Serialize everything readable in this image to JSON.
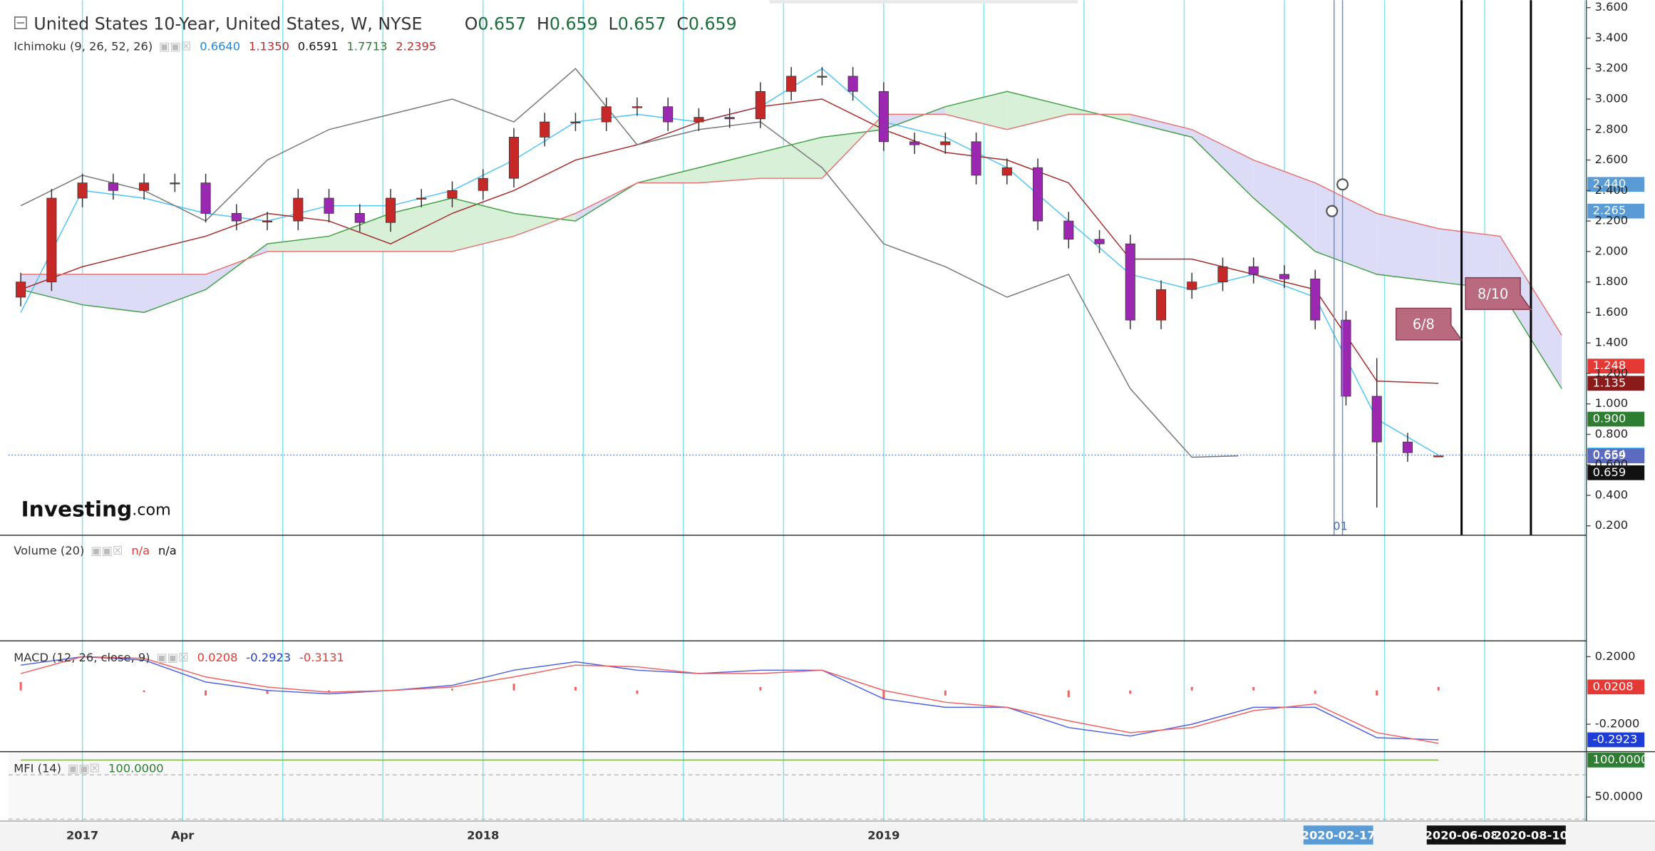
{
  "header": {
    "title": "United States 10-Year, United States, W, NYSE",
    "logo": [
      "Investing",
      ".com"
    ]
  },
  "chart_data": [
    {
      "type": "candlestick",
      "title": "Ichimoku (9, 26, 52, 26)",
      "ohlc": [
        {
          "label": "O",
          "value": "0.657"
        },
        {
          "label": "H",
          "value": "0.659"
        },
        {
          "label": "L",
          "value": "0.657"
        },
        {
          "label": "C",
          "value": "0.659"
        }
      ],
      "legend_values": [
        {
          "text": "0.6640",
          "color": "#1e88e5"
        },
        {
          "text": "1.1350",
          "color": "#c62828"
        },
        {
          "text": "0.6591",
          "color": "#111111"
        },
        {
          "text": "1.7713",
          "color": "#2e7d32"
        },
        {
          "text": "2.2395",
          "color": "#c62828"
        }
      ],
      "x": [
        -8,
        -4,
        0,
        4,
        8,
        12,
        16,
        20,
        24,
        28,
        32,
        36,
        40,
        44,
        48,
        52,
        56,
        60,
        64,
        68,
        72,
        76,
        80,
        84,
        88,
        92,
        96,
        100,
        104,
        108,
        112,
        116,
        120,
        124,
        128,
        132,
        136,
        140,
        144,
        148,
        152,
        156,
        160,
        164,
        168,
        172,
        176
      ],
      "open": [
        1.7,
        1.8,
        2.35,
        2.45,
        2.4,
        2.45,
        2.45,
        2.25,
        2.2,
        2.2,
        2.35,
        2.25,
        2.19,
        2.35,
        2.35,
        2.4,
        2.48,
        2.75,
        2.85,
        2.85,
        2.95,
        2.95,
        2.85,
        2.88,
        2.87,
        3.05,
        3.15,
        3.15,
        3.05,
        2.72,
        2.7,
        2.72,
        2.5,
        2.55,
        2.2,
        2.08,
        2.05,
        1.55,
        1.75,
        1.8,
        1.9,
        1.85,
        1.82,
        1.55,
        1.05,
        0.75,
        0.657
      ],
      "high": [
        1.86,
        2.41,
        2.51,
        2.51,
        2.51,
        2.51,
        2.51,
        2.31,
        2.26,
        2.41,
        2.41,
        2.31,
        2.41,
        2.41,
        2.46,
        2.54,
        2.81,
        2.91,
        2.91,
        3.01,
        3.01,
        3.01,
        2.94,
        2.94,
        3.11,
        3.21,
        3.21,
        3.21,
        3.11,
        2.78,
        2.78,
        2.78,
        2.61,
        2.61,
        2.26,
        2.14,
        2.11,
        1.81,
        1.86,
        1.96,
        1.96,
        1.91,
        1.88,
        1.61,
        1.3,
        0.81,
        0.659
      ],
      "low": [
        1.64,
        1.74,
        2.29,
        2.34,
        2.34,
        2.39,
        2.19,
        2.14,
        2.14,
        2.14,
        2.19,
        2.13,
        2.13,
        2.29,
        2.29,
        2.34,
        2.42,
        2.69,
        2.79,
        2.79,
        2.89,
        2.79,
        2.79,
        2.81,
        2.81,
        2.99,
        3.09,
        2.99,
        2.66,
        2.64,
        2.64,
        2.44,
        2.44,
        2.14,
        2.02,
        1.99,
        1.49,
        1.49,
        1.69,
        1.74,
        1.79,
        1.76,
        1.49,
        0.99,
        0.32,
        0.62,
        0.657
      ],
      "close": [
        1.8,
        2.35,
        2.45,
        2.4,
        2.45,
        2.45,
        2.25,
        2.2,
        2.2,
        2.35,
        2.25,
        2.19,
        2.35,
        2.35,
        2.4,
        2.48,
        2.75,
        2.85,
        2.85,
        2.95,
        2.95,
        2.85,
        2.88,
        2.87,
        3.05,
        3.15,
        3.15,
        3.05,
        2.72,
        2.7,
        2.72,
        2.5,
        2.55,
        2.2,
        2.08,
        2.05,
        1.55,
        1.75,
        1.8,
        1.9,
        1.85,
        1.82,
        1.55,
        1.05,
        0.75,
        0.68,
        0.659
      ],
      "up_color": "#c62828",
      "down_color": "#9c27b0",
      "series": [
        {
          "color": "#4fc3f7",
          "x": [
            -8,
            0,
            8,
            16,
            24,
            32,
            40,
            48,
            56,
            64,
            72,
            80,
            88,
            96,
            104,
            112,
            120,
            128,
            136,
            144,
            152,
            160,
            168,
            176
          ],
          "values": [
            1.6,
            2.4,
            2.35,
            2.25,
            2.2,
            2.3,
            2.3,
            2.4,
            2.6,
            2.85,
            2.9,
            2.85,
            2.95,
            3.2,
            2.85,
            2.75,
            2.55,
            2.2,
            1.85,
            1.75,
            1.85,
            1.7,
            0.9,
            0.664
          ]
        },
        {
          "color": "#a52a2a",
          "x": [
            -8,
            0,
            8,
            16,
            24,
            32,
            40,
            48,
            56,
            64,
            72,
            80,
            88,
            96,
            104,
            112,
            120,
            128,
            136,
            144,
            152,
            160,
            168,
            176
          ],
          "values": [
            1.75,
            1.9,
            2.0,
            2.1,
            2.25,
            2.2,
            2.05,
            2.25,
            2.4,
            2.6,
            2.7,
            2.85,
            2.95,
            3.0,
            2.8,
            2.65,
            2.6,
            2.45,
            1.95,
            1.95,
            1.85,
            1.75,
            1.15,
            1.135
          ]
        },
        {
          "color": "#777777",
          "x": [
            -8,
            0,
            8,
            16,
            24,
            32,
            40,
            48,
            56,
            64,
            72,
            80,
            88,
            96,
            104,
            112,
            120,
            128,
            136,
            144,
            150
          ],
          "values": [
            2.3,
            2.5,
            2.4,
            2.2,
            2.6,
            2.8,
            2.9,
            3.0,
            2.85,
            3.2,
            2.7,
            2.8,
            2.85,
            2.55,
            2.05,
            1.9,
            1.7,
            1.85,
            1.1,
            0.65,
            0.659
          ]
        },
        {
          "color": "#43a047",
          "x": [
            -8,
            0,
            8,
            16,
            24,
            32,
            40,
            48,
            56,
            64,
            72,
            80,
            88,
            96,
            104,
            112,
            120,
            128,
            136,
            144,
            152,
            160,
            168,
            176,
            184,
            192
          ],
          "values": [
            1.75,
            1.65,
            1.6,
            1.75,
            2.05,
            2.1,
            2.25,
            2.35,
            2.25,
            2.2,
            2.45,
            2.55,
            2.65,
            2.75,
            2.8,
            2.95,
            3.05,
            2.95,
            2.85,
            2.75,
            2.35,
            2.0,
            1.85,
            1.8,
            1.75,
            1.1
          ]
        },
        {
          "color": "#e57373",
          "x": [
            -8,
            0,
            8,
            16,
            24,
            32,
            40,
            48,
            56,
            64,
            72,
            80,
            88,
            96,
            104,
            112,
            120,
            128,
            136,
            144,
            152,
            160,
            168,
            176,
            184,
            192
          ],
          "values": [
            1.85,
            1.85,
            1.85,
            1.85,
            2.0,
            2.0,
            2.0,
            2.0,
            2.1,
            2.25,
            2.45,
            2.45,
            2.48,
            2.48,
            2.9,
            2.9,
            2.8,
            2.9,
            2.9,
            2.8,
            2.6,
            2.45,
            2.25,
            2.15,
            2.1,
            1.45
          ]
        }
      ],
      "cloud_colors": [
        "#d8efd8",
        "#dcdcf7"
      ],
      "xlim": [
        -9.6,
        195.2
      ],
      "ylim": [
        0.138,
        3.649
      ],
      "yticks": [
        {
          "value": 3.6,
          "label": "3.600"
        },
        {
          "value": 3.4,
          "label": "3.400"
        },
        {
          "value": 3.2,
          "label": "3.200"
        },
        {
          "value": 3.0,
          "label": "3.000"
        },
        {
          "value": 2.8,
          "label": "2.800"
        },
        {
          "value": 2.6,
          "label": "2.600"
        },
        {
          "value": 2.4,
          "label": "2.400"
        },
        {
          "value": 2.2,
          "label": "2.200"
        },
        {
          "value": 2.0,
          "label": "2.000"
        },
        {
          "value": 1.8,
          "label": "1.800"
        },
        {
          "value": 1.6,
          "label": "1.600"
        },
        {
          "value": 1.4,
          "label": "1.400"
        },
        {
          "value": 1.2,
          "label": "1.200"
        },
        {
          "value": 1.0,
          "label": "1.000"
        },
        {
          "value": 0.8,
          "label": "0.800"
        },
        {
          "value": 0.6,
          "label": "0.600"
        },
        {
          "value": 0.4,
          "label": "0.400"
        },
        {
          "value": 0.2,
          "label": "0.200"
        }
      ],
      "xticks": [
        {
          "value": 0,
          "label": "2017"
        },
        {
          "value": 13,
          "label": "Apr"
        },
        {
          "value": 52,
          "label": "2018"
        },
        {
          "value": 104,
          "label": "2019"
        },
        {
          "value": 163,
          "label": "2020-02-17",
          "background": "#5b9bd5"
        },
        {
          "value": 179,
          "label": "2020-06-08",
          "background": "#111111"
        },
        {
          "value": 188,
          "label": "2020-08-10",
          "background": "#111111"
        }
      ],
      "badges": [
        {
          "value": 2.44,
          "label": "2.440",
          "color": "#5b9bd5"
        },
        {
          "value": 2.265,
          "label": "2.265",
          "color": "#5b9bd5"
        },
        {
          "value": 1.248,
          "label": "1.248",
          "color": "#e53935"
        },
        {
          "value": 1.135,
          "label": "1.135",
          "color": "#8b1a1a"
        },
        {
          "value": 0.9,
          "label": "0.900",
          "color": "#2e7d32"
        },
        {
          "value": 0.664,
          "label": "0.664",
          "color": "#29b6f6"
        },
        {
          "value": 0.659,
          "label": "0.659",
          "color": "#5c6bc0"
        },
        {
          "value": 0.659,
          "label": "0.659",
          "color": "#111111"
        }
      ],
      "price_line": 0.664,
      "markers": [
        {
          "x": 179,
          "value": 1.42,
          "label": "6/8"
        },
        {
          "x": 188,
          "value": 1.62,
          "label": "8/10"
        }
      ],
      "cursor": {
        "x": 163,
        "label": "01",
        "points": [
          2.44,
          2.265
        ]
      }
    },
    {
      "type": "volume",
      "title": "Volume (20)",
      "legend_values": [
        {
          "text": "n/a",
          "color": "#e53935"
        },
        {
          "text": "n/a",
          "color": "#111111"
        }
      ]
    },
    {
      "type": "line",
      "title": "MACD (12, 26, close, 9)",
      "legend_values": [
        {
          "text": "0.0208",
          "color": "#e53935"
        },
        {
          "text": "-0.2923",
          "color": "#1e3cd6"
        },
        {
          "text": "-0.3131",
          "color": "#e53935"
        }
      ],
      "xlim": [
        -9.6,
        195.2
      ],
      "ylim": [
        -0.3625,
        0.294
      ],
      "yticks": [
        {
          "value": 0.2,
          "label": "0.2000"
        },
        {
          "value": -0.2,
          "label": "-0.2000"
        }
      ],
      "series": [
        {
          "color": "#5060e0",
          "x": [
            -8,
            0,
            8,
            16,
            24,
            32,
            40,
            48,
            56,
            64,
            72,
            80,
            88,
            96,
            104,
            112,
            120,
            128,
            136,
            144,
            152,
            160,
            168,
            176
          ],
          "values": [
            0.15,
            0.2,
            0.18,
            0.05,
            0.0,
            -0.02,
            0.0,
            0.03,
            0.12,
            0.17,
            0.12,
            0.1,
            0.12,
            0.12,
            -0.05,
            -0.1,
            -0.1,
            -0.22,
            -0.27,
            -0.2,
            -0.1,
            -0.1,
            -0.28,
            -0.2923
          ]
        },
        {
          "color": "#f06060",
          "x": [
            -8,
            0,
            8,
            16,
            24,
            32,
            40,
            48,
            56,
            64,
            72,
            80,
            88,
            96,
            104,
            112,
            120,
            128,
            136,
            144,
            152,
            160,
            168,
            176
          ],
          "values": [
            0.1,
            0.2,
            0.19,
            0.08,
            0.02,
            -0.01,
            0.0,
            0.02,
            0.08,
            0.15,
            0.14,
            0.1,
            0.1,
            0.12,
            0.0,
            -0.07,
            -0.1,
            -0.18,
            -0.25,
            -0.22,
            -0.12,
            -0.08,
            -0.25,
            -0.3131
          ]
        }
      ],
      "histogram": {
        "color": "#f06060",
        "x": [
          -8,
          0,
          8,
          16,
          24,
          32,
          40,
          48,
          56,
          64,
          72,
          80,
          88,
          96,
          104,
          112,
          120,
          128,
          136,
          144,
          152,
          160,
          168,
          176
        ],
        "values": [
          0.05,
          0.0,
          -0.01,
          -0.03,
          -0.02,
          -0.01,
          0.0,
          0.01,
          0.04,
          0.02,
          -0.02,
          0.0,
          0.02,
          0.0,
          -0.05,
          -0.03,
          0.0,
          -0.04,
          -0.02,
          0.02,
          0.02,
          -0.02,
          -0.03,
          0.0208
        ]
      },
      "badges": [
        {
          "value": 0.0208,
          "label": "0.0208",
          "color": "#e53935"
        },
        {
          "value": -0.2923,
          "label": "-0.2923",
          "color": "#1e3cd6"
        }
      ]
    },
    {
      "type": "line",
      "title": "MFI (14)",
      "legend_values": [
        {
          "text": "100.0000",
          "color": "#2e7d32"
        }
      ],
      "xlim": [
        -9.6,
        195.2
      ],
      "ylim": [
        17.1,
        111.4
      ],
      "yticks": [
        {
          "value": 50,
          "label": "50.0000"
        }
      ],
      "levels": [
        80,
        20
      ],
      "series": [
        {
          "color": "#7cb342",
          "x": [
            -8,
            176
          ],
          "values": [
            100,
            100
          ]
        }
      ],
      "badges": [
        {
          "value": 100,
          "label": "100.0000",
          "color": "#2e7d32"
        }
      ]
    }
  ]
}
